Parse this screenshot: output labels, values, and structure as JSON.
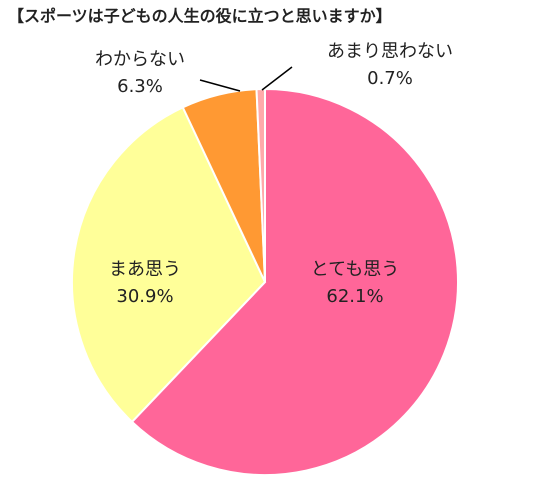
{
  "chart_data": {
    "type": "pie",
    "title": "【スポーツは子どもの人生の役に立つと思いますか】",
    "categories": [
      "とても思う",
      "まあ思う",
      "わからない",
      "あまり思わない"
    ],
    "values": [
      62.1,
      30.9,
      6.3,
      0.7
    ],
    "value_labels": [
      "62.1%",
      "30.9%",
      "6.3%",
      "0.7%"
    ],
    "colors": [
      "#ff6699",
      "#ffff99",
      "#ff9933",
      "#ffaaaa"
    ]
  }
}
